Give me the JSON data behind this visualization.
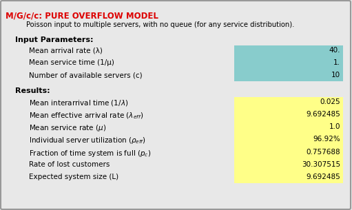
{
  "title_part1": "M/G/c/c: ",
  "title_part2": "PURE OVERFLOW MODEL",
  "subtitle": "Poisson input to multiple servers, with no queue (for any service distribution).",
  "input_header": "Input Parameters:",
  "input_params": [
    {
      "label": "Mean arrival rate (λ)",
      "value": "40."
    },
    {
      "label": "Mean service time (1/μ)",
      "value": "1."
    },
    {
      "label": "Number of available servers (c)",
      "value": "10"
    }
  ],
  "results_header": "Results:",
  "results_params": [
    {
      "value": "0.025"
    },
    {
      "value": "9.692485"
    },
    {
      "value": "1.0"
    },
    {
      "value": "96.92%"
    },
    {
      "value": "0.757688"
    },
    {
      "value": "30.307515"
    },
    {
      "value": "9.692485"
    }
  ],
  "bg_color": "#e8e8e8",
  "border_color": "#999999",
  "title_color": "#dd0000",
  "input_box_color": "#88cccc",
  "results_box_color": "#ffff88",
  "body_font_size": 7.5,
  "header_font_size": 8.0,
  "title_font_size": 8.5
}
